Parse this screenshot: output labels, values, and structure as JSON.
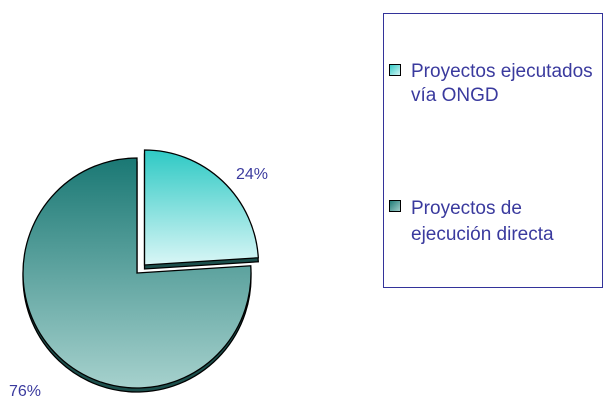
{
  "chart_data": {
    "type": "pie",
    "style": "exploded-3d",
    "slices": [
      {
        "label": "Proyectos ejecutados vía ONGD",
        "legend_lines": [
          "Proyectos ejecutados",
          "vía ONGD"
        ],
        "value": 24,
        "value_label": "24%",
        "color_start": "#2ec9c4",
        "color_end": "#d9f6f6",
        "exploded": true
      },
      {
        "label": "Proyectos de ejecución directa",
        "legend_lines": [
          "Proyectos de",
          "ejecución directa"
        ],
        "value": 76,
        "value_label": "76%",
        "color_start": "#1a7874",
        "color_end": "#a6d1cd",
        "exploded": false
      }
    ],
    "legend": {
      "position": "right",
      "border_color": "#33339a"
    },
    "label_color": "#3a3a9e",
    "outline_color": "#000000"
  }
}
